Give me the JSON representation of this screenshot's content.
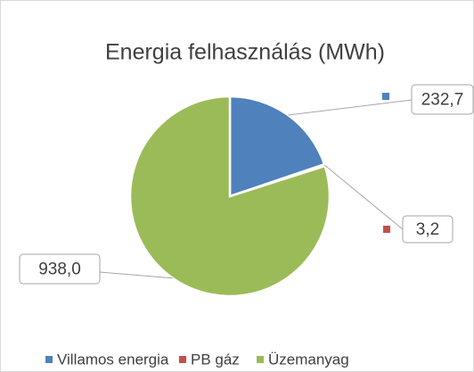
{
  "chart_data": {
    "type": "pie",
    "title": "Energia felhasználás (MWh)",
    "categories": [
      "Villamos energia",
      "PB gáz",
      "Üzemanyag"
    ],
    "values": [
      232.7,
      3.2,
      938.0
    ],
    "value_labels": [
      "232,7",
      "3,2",
      "938,0"
    ],
    "colors": [
      "#4f81bd",
      "#c0504d",
      "#9bbb59"
    ],
    "legend": "bottom"
  }
}
